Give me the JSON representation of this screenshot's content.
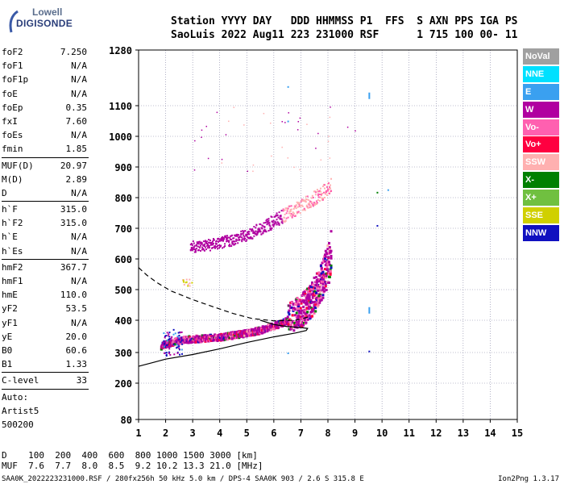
{
  "logo": {
    "line1": "Lowell",
    "line2": "DIGISONDE"
  },
  "header": {
    "line1": "Station YYYY DAY   DDD HHMMSS P1  FFS  S AXN PPS IGA PS",
    "line2": "SaoLuis 2022 Aug11 223 231000 RSF      1 715 100 00- 11"
  },
  "params": [
    {
      "key": "foF2",
      "value": "7.250"
    },
    {
      "key": "foF1",
      "value": "N/A"
    },
    {
      "key": "foF1p",
      "value": "N/A"
    },
    {
      "key": "foE",
      "value": "N/A"
    },
    {
      "key": "foEp",
      "value": "0.35"
    },
    {
      "key": "fxI",
      "value": "7.60"
    },
    {
      "key": "foEs",
      "value": "N/A"
    },
    {
      "key": "fmin",
      "value": "1.85",
      "sep_after": true
    },
    {
      "key": "MUF(D)",
      "value": "20.97"
    },
    {
      "key": "M(D)",
      "value": "2.89"
    },
    {
      "key": "D",
      "value": "N/A",
      "sep_after": true
    },
    {
      "key": "h`F",
      "value": "315.0"
    },
    {
      "key": "h`F2",
      "value": "315.0"
    },
    {
      "key": "h`E",
      "value": "N/A"
    },
    {
      "key": "h`Es",
      "value": "N/A",
      "sep_after": true
    },
    {
      "key": "hmF2",
      "value": "367.7"
    },
    {
      "key": "hmF1",
      "value": "N/A"
    },
    {
      "key": "hmE",
      "value": "110.0"
    },
    {
      "key": "yF2",
      "value": "53.5"
    },
    {
      "key": "yF1",
      "value": "N/A"
    },
    {
      "key": "yE",
      "value": "20.0"
    },
    {
      "key": "B0",
      "value": "60.6"
    },
    {
      "key": "B1",
      "value": "1.33",
      "sep_after": true
    },
    {
      "key": "C-level",
      "value": "33",
      "sep_after": true
    }
  ],
  "autoscaling": {
    "line1": "Auto:",
    "line2": "Artist5",
    "line3": "500200"
  },
  "legend": [
    {
      "label": "NoVal",
      "bg": "#a0a0a0",
      "fg": "#ffffff"
    },
    {
      "label": "NNE",
      "bg": "#00e0ff",
      "fg": "#ffffff"
    },
    {
      "label": "E",
      "bg": "#3aa0f0",
      "fg": "#ffffff"
    },
    {
      "label": "W",
      "bg": "#b000a0",
      "fg": "#ffffff"
    },
    {
      "label": "Vo-",
      "bg": "#ff60b0",
      "fg": "#ffffff"
    },
    {
      "label": "Vo+",
      "bg": "#ff0040",
      "fg": "#ffffff"
    },
    {
      "label": "SSW",
      "bg": "#ffb0b0",
      "fg": "#ffffff"
    },
    {
      "label": "X-",
      "bg": "#008000",
      "fg": "#ffffff"
    },
    {
      "label": "X+",
      "bg": "#70c040",
      "fg": "#ffffff"
    },
    {
      "label": "SSE",
      "bg": "#d0d000",
      "fg": "#ffffff"
    },
    {
      "label": "NNW",
      "bg": "#1010c0",
      "fg": "#ffffff"
    }
  ],
  "footer": {
    "d_line": "D    100  200  400  600  800 1000 1500 3000 [km]",
    "muf_line": "MUF  7.6  7.7  8.0  8.5  9.2 10.2 13.3 21.0 [MHz]",
    "file_line": "SAA0K_2022223231000.RSF / 280fx256h 50 kHz 5.0 km / DPS-4 SAA0K 903 / 2.6 S 315.8 E",
    "version": "Ion2Png 1.3.17"
  },
  "chart_data": {
    "type": "scatter",
    "title": "",
    "xlabel": "",
    "ylabel": "",
    "xlim": [
      1,
      15
    ],
    "ylim": [
      80,
      1280
    ],
    "x_ticks": [
      1,
      2,
      3,
      4,
      5,
      6,
      7,
      8,
      9,
      10,
      11,
      12,
      13,
      14,
      15
    ],
    "y_ticks": [
      80,
      200,
      300,
      400,
      500,
      600,
      700,
      800,
      900,
      1000,
      1100,
      1280
    ],
    "y_scale": "log",
    "grid": true,
    "series": [
      {
        "name": "O-trace",
        "points": [
          [
            1.8,
            318
          ],
          [
            2.0,
            325
          ],
          [
            2.3,
            332
          ],
          [
            2.7,
            338
          ],
          [
            3.0,
            340
          ],
          [
            3.5,
            342
          ],
          [
            4.0,
            345
          ],
          [
            4.5,
            352
          ],
          [
            5.0,
            358
          ],
          [
            5.5,
            368
          ],
          [
            6.0,
            382
          ],
          [
            6.5,
            400
          ],
          [
            7.0,
            425
          ],
          [
            7.3,
            450
          ],
          [
            7.6,
            490
          ],
          [
            7.8,
            530
          ],
          [
            8.0,
            580
          ],
          [
            8.1,
            620
          ]
        ]
      },
      {
        "name": "second-hop",
        "points": [
          [
            2.9,
            640
          ],
          [
            3.5,
            645
          ],
          [
            4.0,
            652
          ],
          [
            4.5,
            665
          ],
          [
            5.0,
            680
          ],
          [
            5.5,
            700
          ],
          [
            6.0,
            725
          ],
          [
            6.5,
            750
          ],
          [
            7.0,
            775
          ],
          [
            7.5,
            800
          ],
          [
            8.0,
            830
          ],
          [
            8.1,
            840
          ]
        ]
      },
      {
        "name": "profile-solid",
        "points": [
          [
            1.0,
            250
          ],
          [
            1.5,
            262
          ],
          [
            2.0,
            275
          ],
          [
            3.0,
            292
          ],
          [
            4.0,
            310
          ],
          [
            5.0,
            328
          ],
          [
            6.0,
            345
          ],
          [
            6.8,
            357
          ],
          [
            7.2,
            365
          ],
          [
            7.25,
            372
          ],
          [
            7.0,
            375
          ],
          [
            6.5,
            378
          ],
          [
            6.0,
            385
          ],
          [
            5.5,
            400
          ]
        ]
      },
      {
        "name": "profile-dashed",
        "points": [
          [
            1.0,
            570
          ],
          [
            1.3,
            545
          ],
          [
            1.7,
            520
          ],
          [
            2.2,
            495
          ],
          [
            3.0,
            465
          ],
          [
            3.8,
            440
          ],
          [
            4.5,
            420
          ],
          [
            5.2,
            405
          ],
          [
            6.0,
            398
          ],
          [
            6.8,
            400
          ],
          [
            7.3,
            410
          ]
        ]
      }
    ]
  }
}
